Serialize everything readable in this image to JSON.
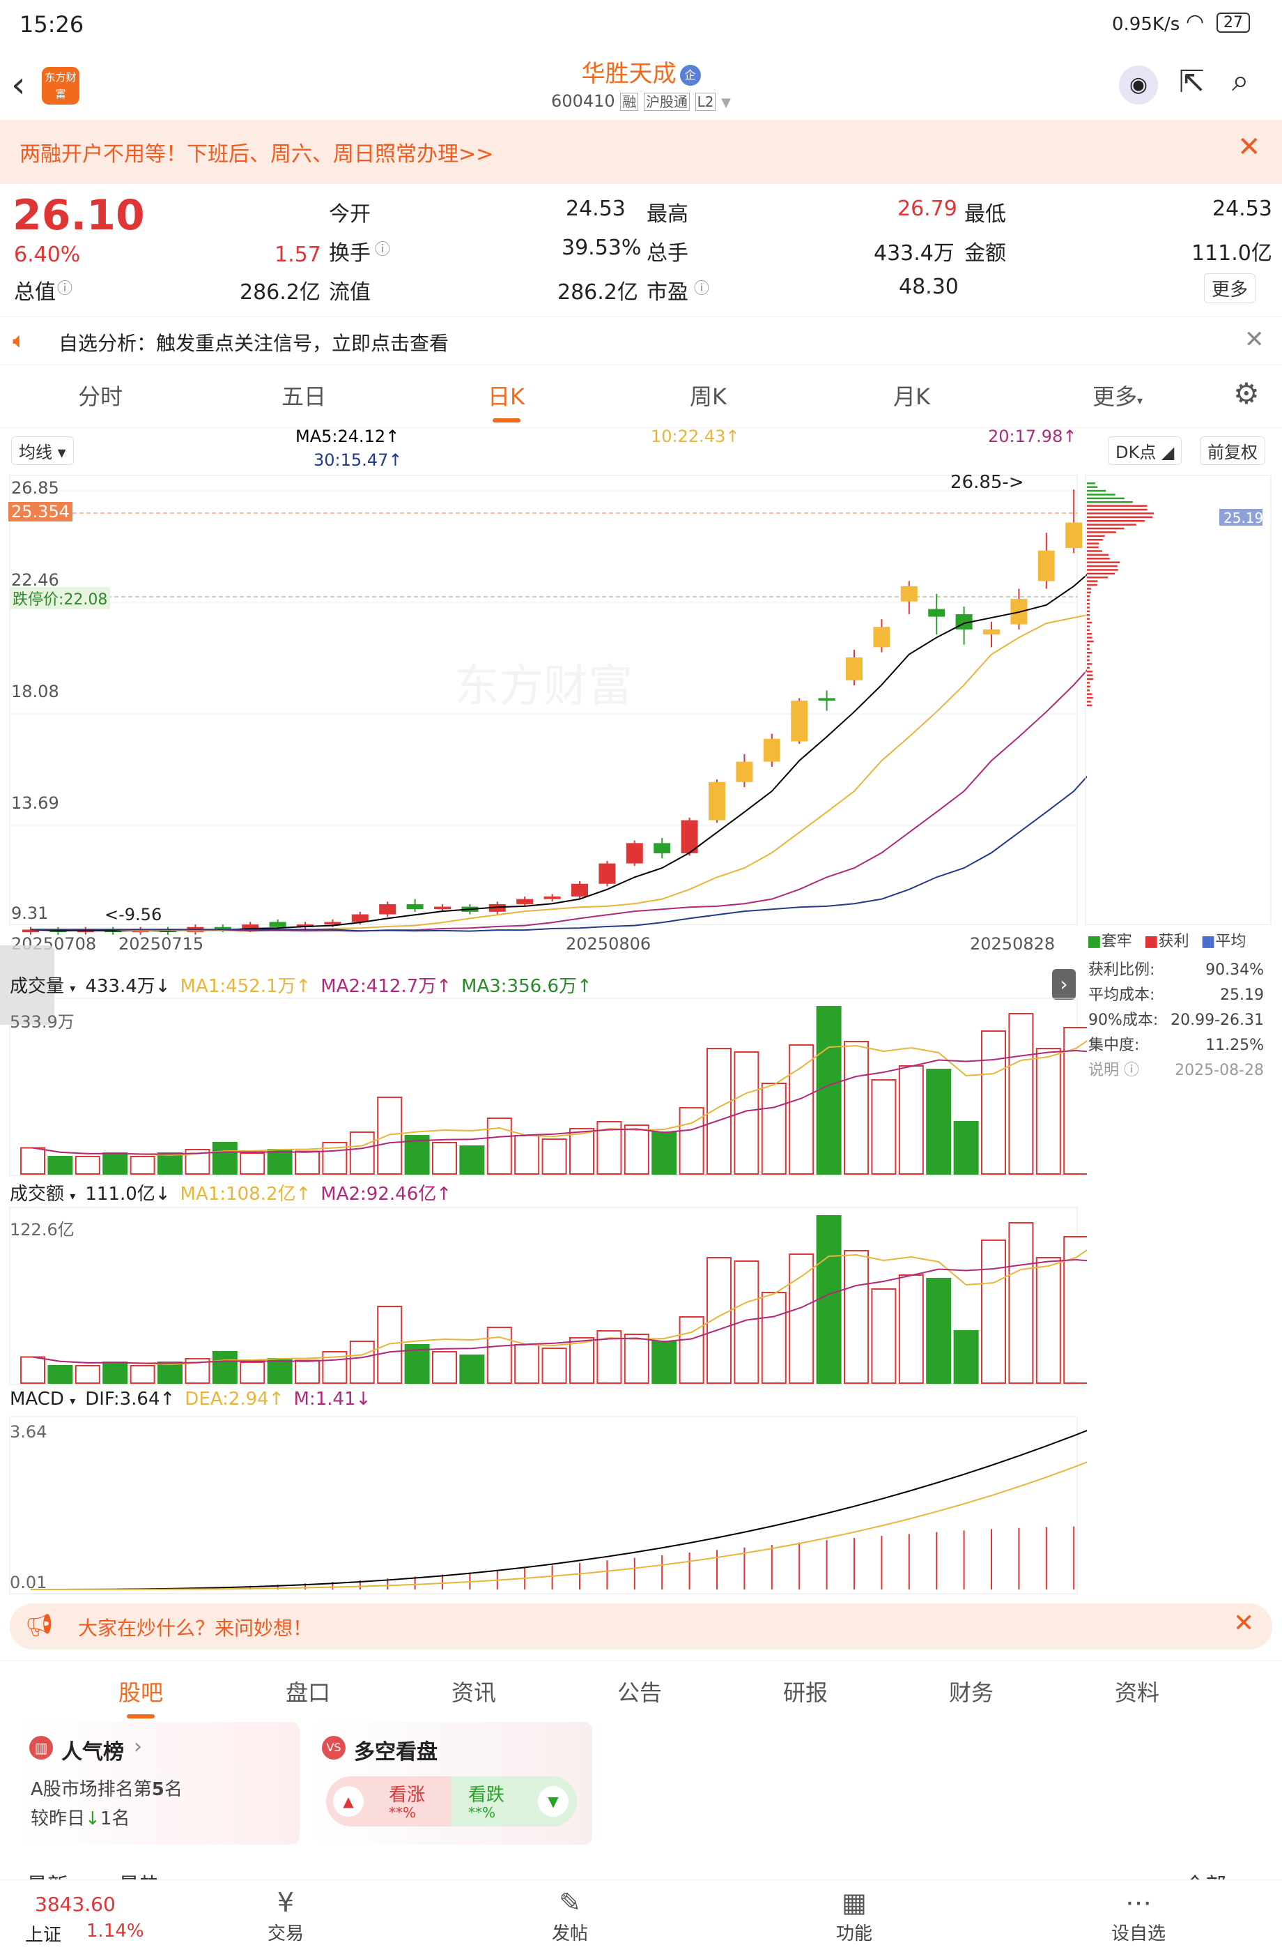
{
  "status": {
    "time": "15:26",
    "net_speed": "0.95K/s",
    "battery": "27"
  },
  "header": {
    "stock_name": "华胜天成",
    "badge": "企",
    "code": "600410",
    "tag1": "融",
    "tag2": "沪股通",
    "tag3": "L2",
    "logo_text": "东方财富"
  },
  "promo_banner": {
    "text": "两融开户不用等！下班后、周六、周日照常办理>>"
  },
  "quote": {
    "price": "26.10",
    "change_pct": "6.40%",
    "change_amt": "1.57",
    "fields": [
      {
        "label": "今开",
        "value": "24.53"
      },
      {
        "label": "最高",
        "value": "26.79"
      },
      {
        "label": "最低",
        "value": "24.53"
      },
      {
        "label": "换手",
        "value": "39.53%"
      },
      {
        "label": "总手",
        "value": "433.4万"
      },
      {
        "label": "金额",
        "value": "111.0亿"
      },
      {
        "label": "总值",
        "value": "286.2亿"
      },
      {
        "label": "流值",
        "value": "286.2亿"
      },
      {
        "label": "市盈",
        "value": "48.30"
      }
    ],
    "more_label": "更多"
  },
  "notice": {
    "text": "自选分析：触发重点关注信号，立即点击查看"
  },
  "chart_tabs": [
    "分时",
    "五日",
    "日K",
    "周K",
    "月K",
    "更多"
  ],
  "active_tab": "日K",
  "kline": {
    "indicator_select": "均线",
    "ma5": "MA5:24.12↑",
    "ma10": "10:22.43↑",
    "ma20": "20:17.98↑",
    "ma30": "30:15.47↑",
    "dk_label": "DK点",
    "adjust_label": "前复权",
    "price_ticks": [
      "26.85",
      "22.46",
      "18.08",
      "13.69",
      "9.31"
    ],
    "current_tag": "25.354",
    "limit_down_tag": "跌停价:22.08",
    "high_marker": "26.85->",
    "low_marker": "<-9.56",
    "watermark": "东方财富",
    "dates": [
      "20250708",
      "20250715",
      "20250806",
      "20250828"
    ]
  },
  "chip_panel": {
    "price_tag": "25.19",
    "legend": [
      "套牢",
      "获利",
      "平均"
    ],
    "rows": [
      {
        "label": "获利比例:",
        "value": "90.34%"
      },
      {
        "label": "平均成本:",
        "value": "25.19"
      },
      {
        "label": "90%成本:",
        "value": "20.99-26.31"
      },
      {
        "label": "集中度:",
        "value": "11.25%"
      }
    ],
    "note_label": "说明",
    "date": "2025-08-28"
  },
  "volume": {
    "select": "成交量",
    "value": "433.4万↓",
    "ma1": "MA1:452.1万↑",
    "ma2": "MA2:412.7万↑",
    "ma3": "MA3:356.6万↑",
    "max": "533.9万"
  },
  "amount": {
    "select": "成交额",
    "value": "111.0亿↓",
    "ma1": "MA1:108.2亿↑",
    "ma2": "MA2:92.46亿↑",
    "max": "122.6亿"
  },
  "macd": {
    "select": "MACD",
    "dif": "DIF:3.64↑",
    "dea": "DEA:2.94↑",
    "m": "M:1.41↓",
    "max": "3.64",
    "min": "0.01"
  },
  "ad_bar": {
    "text": "大家在炒什么？来问妙想！"
  },
  "section_tabs": [
    "股吧",
    "盘口",
    "资讯",
    "公告",
    "研报",
    "财务",
    "资料"
  ],
  "cards": {
    "popular": {
      "title": "人气榜",
      "line1_pre": "A股市场排名第",
      "rank": "5",
      "line1_post": "名",
      "line2_pre": "较昨日",
      "line2_num": "1",
      "line2_post": "名"
    },
    "bullbear": {
      "title": "多空看盘",
      "up_label": "看涨",
      "up_value": "**%",
      "down_label": "看跌",
      "down_value": "**%"
    }
  },
  "feed_tabs": [
    "最新",
    "最热",
    "全部"
  ],
  "bottom_nav": {
    "index_value": "3843.60",
    "index_name": "上证",
    "index_change": "1.14%",
    "items": [
      "交易",
      "发帖",
      "功能",
      "设自选"
    ]
  },
  "colors": {
    "up": "#e03535",
    "down": "#2aa22a",
    "accent": "#f26a1b",
    "ma5": "#000000",
    "ma10": "#e7b53a",
    "ma20": "#b0287a",
    "ma30": "#233a8a"
  }
}
